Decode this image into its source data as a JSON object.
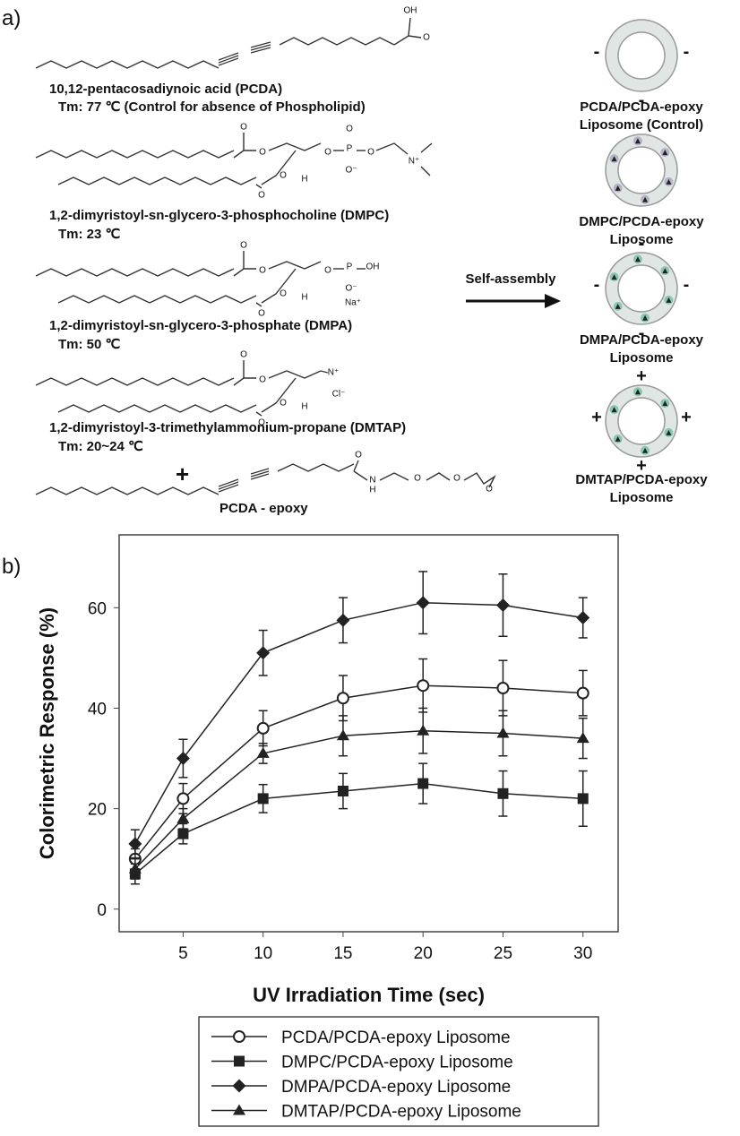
{
  "panel_a": {
    "label": "a)",
    "molecules": [
      {
        "name": "10,12-pentacosadiynoic acid (PCDA)",
        "tm": "Tm: 77 ℃ (Control for absence of Phospholipid)",
        "atoms": [
          "OH",
          "O"
        ]
      },
      {
        "name": "1,2-dimyristoyl-sn-glycero-3-phosphocholine (DMPC)",
        "tm": "Tm: 23 ℃",
        "atoms": [
          "O",
          "O",
          "O",
          "P",
          "O",
          "O⁻",
          "O",
          "N⁺",
          "O",
          "H",
          "O"
        ]
      },
      {
        "name": "1,2-dimyristoyl-sn-glycero-3-phosphate (DMPA)",
        "tm": "Tm: 50 ℃",
        "atoms": [
          "O",
          "O",
          "O",
          "P",
          "OH",
          "O⁻",
          "Na⁺",
          "O",
          "H",
          "O"
        ]
      },
      {
        "name": "1,2-dimyristoyl-3-trimethylammonium-propane (DMTAP)",
        "tm": "Tm: 20~24 ℃",
        "atoms": [
          "O",
          "O",
          "N⁺",
          "Cl⁻",
          "O",
          "H",
          "O"
        ]
      },
      {
        "name": "PCDA - epoxy",
        "atoms": [
          "O",
          "N",
          "H",
          "O",
          "O",
          "O"
        ]
      }
    ],
    "plus": "+",
    "arrow_label": "Self-assembly",
    "liposomes": [
      {
        "lines": [
          "PCDA/PCDA-epoxy",
          "Liposome (Control)"
        ],
        "charges": [
          "-",
          "-",
          "-"
        ]
      },
      {
        "lines": [
          "DMPC/PCDA-epoxy",
          "Liposome"
        ],
        "charges": []
      },
      {
        "lines": [
          "DMPA/PCDA-epoxy",
          "Liposome"
        ],
        "charges": [
          "-",
          "-",
          "-",
          "-"
        ]
      },
      {
        "lines": [
          "DMTAP/PCDA-epoxy",
          "Liposome"
        ],
        "charges": [
          "+",
          "+",
          "+",
          "+"
        ]
      }
    ]
  },
  "panel_b": {
    "label": "b)"
  },
  "chart_data": {
    "type": "line",
    "xlabel": "UV Irradiation Time (sec)",
    "ylabel": "Colorimetric Response (%)",
    "x": [
      2,
      5,
      10,
      15,
      20,
      25,
      30
    ],
    "xlim": [
      1,
      32.2
    ],
    "xticks": [
      5,
      10,
      15,
      20,
      25,
      30
    ],
    "ylim": [
      -4.5,
      74.5
    ],
    "yticks": [
      0,
      20,
      40,
      60
    ],
    "legend": "below",
    "series": [
      {
        "name": "PCDA/PCDA-epoxy Liposome",
        "color": "#222222",
        "marker": "circle-open",
        "values": [
          10,
          22,
          36,
          42,
          44.5,
          44,
          43
        ],
        "errors": [
          2,
          3,
          3.5,
          4.5,
          5.3,
          5.5,
          4.5
        ]
      },
      {
        "name": "DMPC/PCDA-epoxy Liposome",
        "color": "#222222",
        "marker": "square",
        "values": [
          7,
          15,
          22,
          23.5,
          25,
          23,
          22
        ],
        "errors": [
          2,
          2,
          2.8,
          3.5,
          4,
          4.5,
          5.5
        ]
      },
      {
        "name": "DMPA/PCDA-epoxy Liposome",
        "color": "#222222",
        "marker": "diamond",
        "values": [
          13,
          30,
          51,
          57.5,
          61,
          60.5,
          58
        ],
        "errors": [
          2.8,
          3.8,
          4.5,
          4.5,
          6.2,
          6.2,
          4
        ]
      },
      {
        "name": "DMTAP/PCDA-epoxy Liposome",
        "color": "#222222",
        "marker": "triangle",
        "values": [
          8,
          18,
          31,
          34.5,
          35.5,
          35,
          34
        ],
        "errors": [
          2,
          2,
          2,
          4,
          4.5,
          4.5,
          4
        ]
      }
    ]
  }
}
